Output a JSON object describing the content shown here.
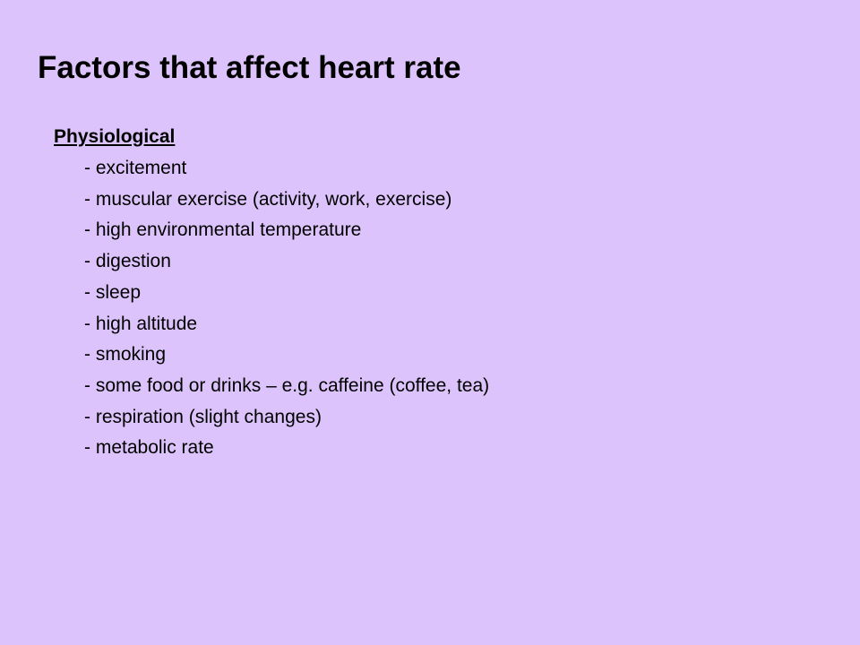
{
  "slide": {
    "title": "Factors that affect heart rate",
    "section_heading": "Physiological",
    "items": [
      "- excitement",
      "- muscular exercise (activity, work, exercise)",
      "- high environmental temperature",
      "- digestion",
      "- sleep",
      "- high altitude",
      "- smoking",
      "- some food or drinks – e.g. caffeine (coffee, tea)",
      "- respiration (slight changes)",
      "- metabolic rate"
    ]
  },
  "colors": {
    "background": "#ddc3fb",
    "text": "#000000"
  }
}
